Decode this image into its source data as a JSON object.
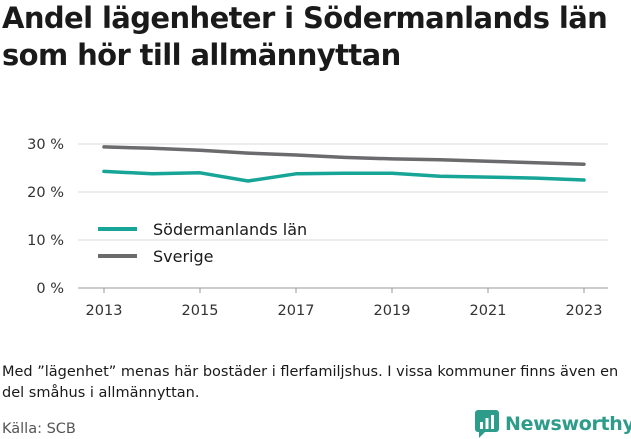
{
  "title": "Andel lägenheter i Södermanlands län som hör till allmännyttan",
  "note": "Med ”lägenhet” menas här bostäder i flerfamiljshus. I vissa kommuner finns även en del småhus i allmännyttan.",
  "source": "Källa: SCB",
  "brand": {
    "name": "Newsworthy",
    "color": "#2e9c8a"
  },
  "chart_data": {
    "type": "line",
    "x": [
      2013,
      2014,
      2015,
      2016,
      2017,
      2018,
      2019,
      2020,
      2021,
      2022,
      2023
    ],
    "x_ticks": [
      "2013",
      "2015",
      "2017",
      "2019",
      "2021",
      "2023"
    ],
    "y_ticks": [
      {
        "value": 0,
        "label": "0 %"
      },
      {
        "value": 10,
        "label": "10 %"
      },
      {
        "value": 20,
        "label": "20 %"
      },
      {
        "value": 30,
        "label": "30 %"
      }
    ],
    "ylim": [
      0,
      30
    ],
    "xlim": [
      2013,
      2023
    ],
    "grid": true,
    "legend_position": "left",
    "series": [
      {
        "name": "Södermanlands län",
        "color": "#16a596",
        "values": [
          24.3,
          23.8,
          24.0,
          22.3,
          23.8,
          23.9,
          23.9,
          23.3,
          23.1,
          22.9,
          22.5
        ]
      },
      {
        "name": "Sverige",
        "color": "#6b6b6e",
        "values": [
          29.4,
          29.1,
          28.7,
          28.1,
          27.7,
          27.2,
          26.9,
          26.7,
          26.4,
          26.1,
          25.8
        ]
      }
    ]
  }
}
